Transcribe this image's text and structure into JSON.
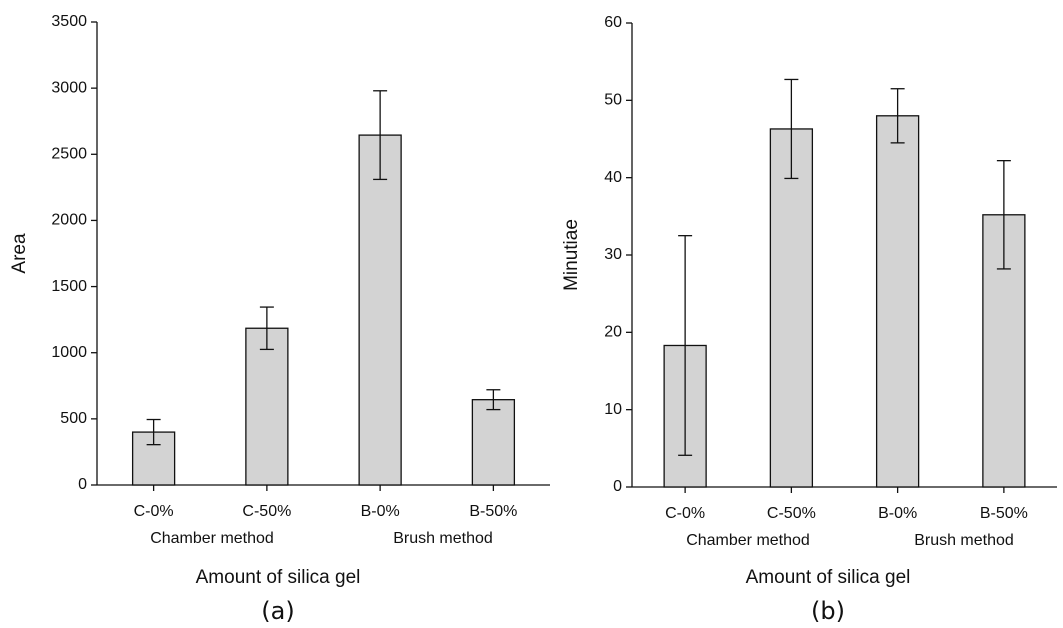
{
  "chart_data": [
    {
      "type": "bar",
      "panel_label": "(a)",
      "xlabel": "Amount of silica gel",
      "ylabel": "Area",
      "categories": [
        "C-0%",
        "C-50%",
        "B-0%",
        "B-50%"
      ],
      "groups": [
        "Chamber method",
        "Brush method"
      ],
      "values": [
        400,
        1185,
        2645,
        645
      ],
      "errors": [
        95,
        160,
        335,
        75
      ],
      "color": "#d3d3d3",
      "ylim": [
        0,
        3500
      ],
      "yticks": [
        0,
        500,
        1000,
        1500,
        2000,
        2500,
        3000,
        3500
      ],
      "grid": false
    },
    {
      "type": "bar",
      "panel_label": "(b)",
      "xlabel": "Amount of silica gel",
      "ylabel": "Minutiae",
      "categories": [
        "C-0%",
        "C-50%",
        "B-0%",
        "B-50%"
      ],
      "groups": [
        "Chamber method",
        "Brush method"
      ],
      "values": [
        18.3,
        46.3,
        48,
        35.2
      ],
      "errors": [
        14.2,
        6.4,
        3.5,
        7
      ],
      "color": "#d3d3d3",
      "ylim": [
        0,
        60
      ],
      "yticks": [
        0,
        10,
        20,
        30,
        40,
        50,
        60
      ],
      "grid": false
    }
  ]
}
